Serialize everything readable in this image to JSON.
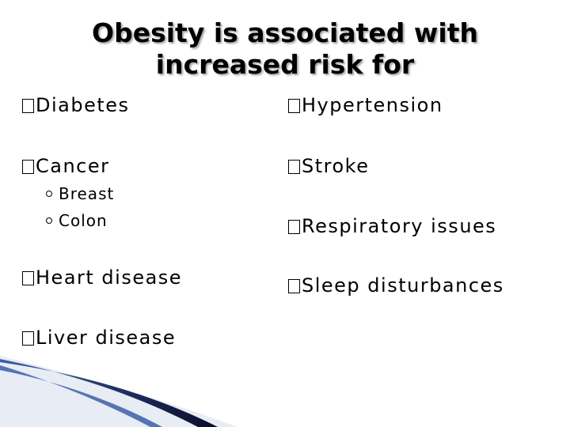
{
  "slide": {
    "title_line1": "Obesity is associated with",
    "title_line2": "increased risk for",
    "left_column": {
      "diabetes": "Diabetes",
      "cancer": "Cancer",
      "cancer_sub": [
        "Breast",
        "Colon"
      ],
      "heart_disease": "Heart disease",
      "liver_disease": "Liver disease"
    },
    "right_column": {
      "hypertension": "Hypertension",
      "stroke": "Stroke",
      "respiratory": "Respiratory issues",
      "sleep": "Sleep disturbances"
    }
  },
  "colors": {
    "decoration_dark": "#0a0a2a",
    "decoration_blue": "#3a5fa8"
  }
}
